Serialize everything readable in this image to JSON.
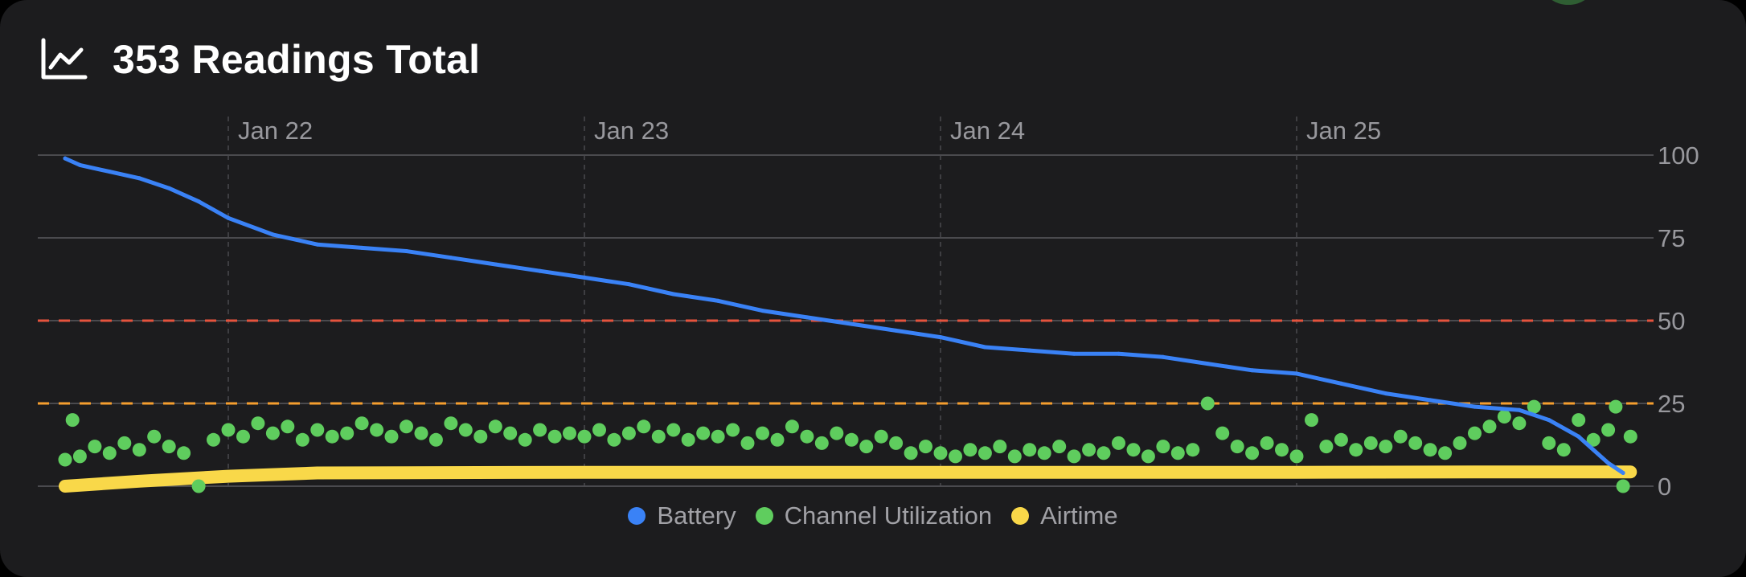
{
  "header": {
    "title": "353 Readings Total",
    "icon": "line-chart-icon"
  },
  "colors": {
    "battery": "#3a82f6",
    "channel_utilization": "#5fcd5e",
    "airtime": "#f9d849",
    "threshold_red": "#e5533d",
    "threshold_orange": "#f59e2f",
    "grid": "#5a5a5e",
    "tick_text": "#98989d"
  },
  "legend": [
    {
      "label": "Battery",
      "color": "#3a82f6"
    },
    {
      "label": "Channel Utilization",
      "color": "#5fcd5e"
    },
    {
      "label": "Airtime",
      "color": "#f9d849"
    }
  ],
  "chart_data": {
    "type": "line",
    "title": "353 Readings Total",
    "x_axis": {
      "type": "date",
      "range": [
        "Jan 21 13:00",
        "Jan 25 22:30"
      ],
      "ticks": [
        {
          "label": "Jan 22",
          "at": "Jan 22 00:00"
        },
        {
          "label": "Jan 23",
          "at": "Jan 23 00:00"
        },
        {
          "label": "Jan 24",
          "at": "Jan 24 00:00"
        },
        {
          "label": "Jan 25",
          "at": "Jan 25 00:00"
        }
      ],
      "gridlines": "dashed-vertical"
    },
    "y_axis": {
      "range": [
        0,
        100
      ],
      "ticks": [
        100,
        75,
        50,
        25,
        0
      ],
      "position": "right",
      "gridlines": "solid-horizontal"
    },
    "threshold_lines": [
      {
        "value": 50,
        "color": "#e5533d",
        "style": "dashed"
      },
      {
        "value": 25,
        "color": "#f59e2f",
        "style": "dashed"
      }
    ],
    "series": [
      {
        "name": "Battery",
        "style": "line",
        "color": "#3a82f6",
        "points": [
          [
            "Jan 21 13:00",
            99
          ],
          [
            "Jan 21 14:00",
            97
          ],
          [
            "Jan 21 16:00",
            95
          ],
          [
            "Jan 21 18:00",
            93
          ],
          [
            "Jan 21 20:00",
            90
          ],
          [
            "Jan 21 22:00",
            86
          ],
          [
            "Jan 22 00:00",
            81
          ],
          [
            "Jan 22 03:00",
            76
          ],
          [
            "Jan 22 06:00",
            73
          ],
          [
            "Jan 22 09:00",
            72
          ],
          [
            "Jan 22 12:00",
            71
          ],
          [
            "Jan 22 15:00",
            69
          ],
          [
            "Jan 22 18:00",
            67
          ],
          [
            "Jan 22 21:00",
            65
          ],
          [
            "Jan 23 00:00",
            63
          ],
          [
            "Jan 23 03:00",
            61
          ],
          [
            "Jan 23 06:00",
            58
          ],
          [
            "Jan 23 09:00",
            56
          ],
          [
            "Jan 23 12:00",
            53
          ],
          [
            "Jan 23 15:00",
            51
          ],
          [
            "Jan 23 18:00",
            49
          ],
          [
            "Jan 23 21:00",
            47
          ],
          [
            "Jan 24 00:00",
            45
          ],
          [
            "Jan 24 03:00",
            42
          ],
          [
            "Jan 24 06:00",
            41
          ],
          [
            "Jan 24 09:00",
            40
          ],
          [
            "Jan 24 12:00",
            40
          ],
          [
            "Jan 24 15:00",
            39
          ],
          [
            "Jan 24 18:00",
            37
          ],
          [
            "Jan 24 21:00",
            35
          ],
          [
            "Jan 25 00:00",
            34
          ],
          [
            "Jan 25 03:00",
            31
          ],
          [
            "Jan 25 06:00",
            28
          ],
          [
            "Jan 25 09:00",
            26
          ],
          [
            "Jan 25 12:00",
            24
          ],
          [
            "Jan 25 15:00",
            23
          ],
          [
            "Jan 25 17:00",
            20
          ],
          [
            "Jan 25 19:00",
            15
          ],
          [
            "Jan 25 21:00",
            7
          ],
          [
            "Jan 25 22:00",
            4
          ]
        ]
      },
      {
        "name": "Channel Utilization",
        "style": "scatter",
        "color": "#5fcd5e",
        "points": [
          [
            "Jan 21 13:00",
            8
          ],
          [
            "Jan 21 13:30",
            20
          ],
          [
            "Jan 21 14:00",
            9
          ],
          [
            "Jan 21 15:00",
            12
          ],
          [
            "Jan 21 16:00",
            10
          ],
          [
            "Jan 21 17:00",
            13
          ],
          [
            "Jan 21 18:00",
            11
          ],
          [
            "Jan 21 19:00",
            15
          ],
          [
            "Jan 21 20:00",
            12
          ],
          [
            "Jan 21 21:00",
            10
          ],
          [
            "Jan 21 22:00",
            0
          ],
          [
            "Jan 21 23:00",
            14
          ],
          [
            "Jan 22 00:00",
            17
          ],
          [
            "Jan 22 01:00",
            15
          ],
          [
            "Jan 22 02:00",
            19
          ],
          [
            "Jan 22 03:00",
            16
          ],
          [
            "Jan 22 04:00",
            18
          ],
          [
            "Jan 22 05:00",
            14
          ],
          [
            "Jan 22 06:00",
            17
          ],
          [
            "Jan 22 07:00",
            15
          ],
          [
            "Jan 22 08:00",
            16
          ],
          [
            "Jan 22 09:00",
            19
          ],
          [
            "Jan 22 10:00",
            17
          ],
          [
            "Jan 22 11:00",
            15
          ],
          [
            "Jan 22 12:00",
            18
          ],
          [
            "Jan 22 13:00",
            16
          ],
          [
            "Jan 22 14:00",
            14
          ],
          [
            "Jan 22 15:00",
            19
          ],
          [
            "Jan 22 16:00",
            17
          ],
          [
            "Jan 22 17:00",
            15
          ],
          [
            "Jan 22 18:00",
            18
          ],
          [
            "Jan 22 19:00",
            16
          ],
          [
            "Jan 22 20:00",
            14
          ],
          [
            "Jan 22 21:00",
            17
          ],
          [
            "Jan 22 22:00",
            15
          ],
          [
            "Jan 22 23:00",
            16
          ],
          [
            "Jan 23 00:00",
            15
          ],
          [
            "Jan 23 01:00",
            17
          ],
          [
            "Jan 23 02:00",
            14
          ],
          [
            "Jan 23 03:00",
            16
          ],
          [
            "Jan 23 04:00",
            18
          ],
          [
            "Jan 23 05:00",
            15
          ],
          [
            "Jan 23 06:00",
            17
          ],
          [
            "Jan 23 07:00",
            14
          ],
          [
            "Jan 23 08:00",
            16
          ],
          [
            "Jan 23 09:00",
            15
          ],
          [
            "Jan 23 10:00",
            17
          ],
          [
            "Jan 23 11:00",
            13
          ],
          [
            "Jan 23 12:00",
            16
          ],
          [
            "Jan 23 13:00",
            14
          ],
          [
            "Jan 23 14:00",
            18
          ],
          [
            "Jan 23 15:00",
            15
          ],
          [
            "Jan 23 16:00",
            13
          ],
          [
            "Jan 23 17:00",
            16
          ],
          [
            "Jan 23 18:00",
            14
          ],
          [
            "Jan 23 19:00",
            12
          ],
          [
            "Jan 23 20:00",
            15
          ],
          [
            "Jan 23 21:00",
            13
          ],
          [
            "Jan 23 22:00",
            10
          ],
          [
            "Jan 23 23:00",
            12
          ],
          [
            "Jan 24 00:00",
            10
          ],
          [
            "Jan 24 01:00",
            9
          ],
          [
            "Jan 24 02:00",
            11
          ],
          [
            "Jan 24 03:00",
            10
          ],
          [
            "Jan 24 04:00",
            12
          ],
          [
            "Jan 24 05:00",
            9
          ],
          [
            "Jan 24 06:00",
            11
          ],
          [
            "Jan 24 07:00",
            10
          ],
          [
            "Jan 24 08:00",
            12
          ],
          [
            "Jan 24 09:00",
            9
          ],
          [
            "Jan 24 10:00",
            11
          ],
          [
            "Jan 24 11:00",
            10
          ],
          [
            "Jan 24 12:00",
            13
          ],
          [
            "Jan 24 13:00",
            11
          ],
          [
            "Jan 24 14:00",
            9
          ],
          [
            "Jan 24 15:00",
            12
          ],
          [
            "Jan 24 16:00",
            10
          ],
          [
            "Jan 24 17:00",
            11
          ],
          [
            "Jan 24 18:00",
            25
          ],
          [
            "Jan 24 19:00",
            16
          ],
          [
            "Jan 24 20:00",
            12
          ],
          [
            "Jan 24 21:00",
            10
          ],
          [
            "Jan 24 22:00",
            13
          ],
          [
            "Jan 24 23:00",
            11
          ],
          [
            "Jan 25 00:00",
            9
          ],
          [
            "Jan 25 01:00",
            20
          ],
          [
            "Jan 25 02:00",
            12
          ],
          [
            "Jan 25 03:00",
            14
          ],
          [
            "Jan 25 04:00",
            11
          ],
          [
            "Jan 25 05:00",
            13
          ],
          [
            "Jan 25 06:00",
            12
          ],
          [
            "Jan 25 07:00",
            15
          ],
          [
            "Jan 25 08:00",
            13
          ],
          [
            "Jan 25 09:00",
            11
          ],
          [
            "Jan 25 10:00",
            10
          ],
          [
            "Jan 25 11:00",
            13
          ],
          [
            "Jan 25 12:00",
            16
          ],
          [
            "Jan 25 13:00",
            18
          ],
          [
            "Jan 25 14:00",
            21
          ],
          [
            "Jan 25 15:00",
            19
          ],
          [
            "Jan 25 16:00",
            24
          ],
          [
            "Jan 25 17:00",
            13
          ],
          [
            "Jan 25 18:00",
            11
          ],
          [
            "Jan 25 19:00",
            20
          ],
          [
            "Jan 25 20:00",
            14
          ],
          [
            "Jan 25 21:00",
            17
          ],
          [
            "Jan 25 21:30",
            24
          ],
          [
            "Jan 25 22:00",
            0
          ],
          [
            "Jan 25 22:30",
            15
          ]
        ]
      },
      {
        "name": "Airtime",
        "style": "line",
        "color": "#f9d849",
        "points": [
          [
            "Jan 21 13:00",
            0
          ],
          [
            "Jan 21 18:00",
            1.5
          ],
          [
            "Jan 22 00:00",
            3
          ],
          [
            "Jan 22 06:00",
            4
          ],
          [
            "Jan 23 00:00",
            4.2
          ],
          [
            "Jan 24 00:00",
            4.2
          ],
          [
            "Jan 25 00:00",
            4.2
          ],
          [
            "Jan 25 12:00",
            4.3
          ],
          [
            "Jan 25 22:30",
            4.3
          ]
        ]
      }
    ]
  }
}
